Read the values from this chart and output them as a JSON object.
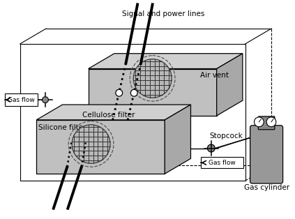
{
  "bg_color": "#ffffff",
  "labels": {
    "signal": "Signal and power lines",
    "air_vent": "Air vent",
    "cellulose": "Cellulose filter",
    "silicone": "Silicone filter",
    "stopcock": "Stopcock",
    "gas_flow_left": "Gas flow",
    "gas_flow_right": "Gas flow",
    "gas_cylinder": "Gas cylinder"
  },
  "figsize": [
    4.23,
    3.14
  ],
  "dpi": 100
}
